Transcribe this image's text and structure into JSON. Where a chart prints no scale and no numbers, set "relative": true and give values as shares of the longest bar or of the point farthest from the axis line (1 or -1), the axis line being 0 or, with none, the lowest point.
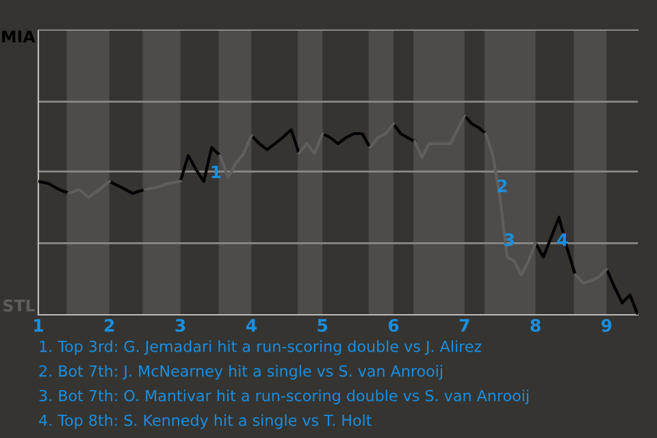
{
  "chart_data": {
    "type": "line",
    "relative": true,
    "x": [
      1,
      1.14,
      1.29,
      1.43,
      1.57,
      1.71,
      1.86,
      2,
      2.17,
      2.33,
      2.5,
      2.67,
      2.83,
      3,
      3.11,
      3.22,
      3.33,
      3.44,
      3.56,
      3.67,
      3.78,
      3.89,
      4,
      4.11,
      4.22,
      4.33,
      4.44,
      4.56,
      4.67,
      4.78,
      4.89,
      5,
      5.11,
      5.22,
      5.33,
      5.44,
      5.56,
      5.67,
      5.78,
      5.89,
      6,
      6.1,
      6.2,
      6.3,
      6.4,
      6.5,
      6.6,
      6.7,
      6.8,
      6.9,
      7,
      7.1,
      7.2,
      7.3,
      7.4,
      7.5,
      7.6,
      7.7,
      7.8,
      7.9,
      8,
      8.11,
      8.22,
      8.33,
      8.44,
      8.56,
      8.67,
      8.78,
      8.89,
      9,
      9.11,
      9.22,
      9.33,
      9.44
    ],
    "xlim": [
      1,
      9.44
    ],
    "xticks": [
      1,
      2,
      3,
      4,
      5,
      6,
      7,
      8,
      9
    ],
    "ref_lines": [
      {
        "axis": "y",
        "value": 0.36,
        "color": "#8a8986"
      },
      {
        "axis": "y",
        "value": 0.72,
        "color": "#8a8986"
      },
      {
        "axis": "y",
        "value": 1.07,
        "color": "#8a8986"
      }
    ],
    "legend": false,
    "marker": "none",
    "line_style": "solid",
    "series": [
      {
        "color": "#000000",
        "values": [
          0.67,
          0.66,
          0.63,
          0.61,
          null,
          null,
          null,
          0.67,
          0.64,
          0.61,
          0.63,
          null,
          null,
          0.67,
          0.8,
          0.73,
          0.67,
          0.84,
          0.8,
          null,
          null,
          null,
          0.9,
          0.86,
          0.83,
          0.86,
          0.89,
          0.93,
          0.81,
          null,
          null,
          0.91,
          0.89,
          0.86,
          0.89,
          0.91,
          0.91,
          0.84,
          null,
          null,
          0.96,
          0.91,
          0.89,
          0.87,
          null,
          null,
          null,
          null,
          null,
          null,
          1,
          0.96,
          0.94,
          0.91,
          null,
          null,
          null,
          null,
          null,
          null,
          0.36,
          0.29,
          0.39,
          0.49,
          0.34,
          0.2,
          null,
          null,
          null,
          0.23,
          0.14,
          0.06,
          0.1,
          0
        ]
      },
      {
        "color": "#5f5e5b",
        "values": [
          null,
          null,
          null,
          0.61,
          0.63,
          0.59,
          0.63,
          0.67,
          null,
          null,
          0.63,
          0.64,
          0.66,
          0.67,
          null,
          null,
          null,
          null,
          0.8,
          0.69,
          0.76,
          0.81,
          0.9,
          null,
          null,
          null,
          null,
          null,
          0.81,
          0.86,
          0.81,
          0.91,
          null,
          null,
          null,
          null,
          null,
          0.84,
          0.89,
          0.91,
          0.96,
          null,
          null,
          0.87,
          0.79,
          0.86,
          0.86,
          0.86,
          0.86,
          0.93,
          1,
          null,
          null,
          0.91,
          0.8,
          0.59,
          0.29,
          0.27,
          0.2,
          0.27,
          0.36,
          null,
          null,
          null,
          null,
          0.2,
          0.16,
          0.17,
          0.19,
          0.23,
          null,
          null,
          null,
          null
        ]
      }
    ],
    "bands": [
      {
        "axis": "x",
        "from": 1.4,
        "to": 2,
        "color": "#4d4c4a"
      },
      {
        "axis": "x",
        "from": 2.47,
        "to": 3,
        "color": "#4d4c4a"
      },
      {
        "axis": "x",
        "from": 3.54,
        "to": 4,
        "color": "#4d4c4a"
      },
      {
        "axis": "x",
        "from": 4.65,
        "to": 5,
        "color": "#4d4c4a"
      },
      {
        "axis": "x",
        "from": 5.65,
        "to": 6,
        "color": "#4d4c4a"
      },
      {
        "axis": "x",
        "from": 6.28,
        "to": 7,
        "color": "#4d4c4a"
      },
      {
        "axis": "x",
        "from": 7.28,
        "to": 8,
        "color": "#4d4c4a"
      },
      {
        "axis": "x",
        "from": 8.54,
        "to": 9,
        "color": "#4d4c4a"
      }
    ],
    "annotations": [
      "MIA",
      "STL",
      {
        "text": "1",
        "x": 3.5,
        "y": 0.71
      },
      {
        "text": "2",
        "x": 7.53,
        "y": 0.64
      },
      {
        "text": "3",
        "x": 7.63,
        "y": 0.37
      },
      {
        "text": "4",
        "x": 8.38,
        "y": 0.37
      },
      "1. Top 3rd: G. Jemadari hit a run-scoring double vs J. Alirez",
      "2. Bot 7th: J. McNearney hit a single vs S. van Anrooij",
      "3. Bot 7th: O. Mantivar hit a run-scoring double vs S. van Anrooij",
      "4. Top 8th: S. Kennedy hit a single vs T. Holt"
    ]
  }
}
